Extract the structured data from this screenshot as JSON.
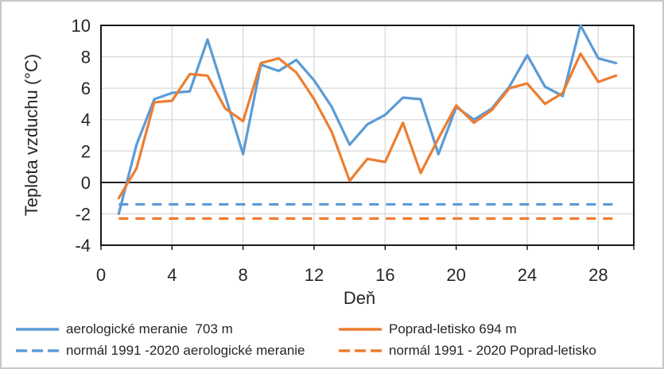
{
  "chart_data": {
    "type": "line",
    "xlabel": "Deň",
    "ylabel": "Teplota vzduchu (°C)",
    "xlim": [
      0,
      30
    ],
    "ylim": [
      -4,
      10
    ],
    "xticks": [
      0,
      4,
      8,
      12,
      16,
      20,
      24,
      28
    ],
    "yticks": [
      -4,
      -2,
      0,
      2,
      4,
      6,
      8,
      10
    ],
    "grid": true,
    "legend_position": "bottom",
    "x": [
      1,
      2,
      3,
      4,
      5,
      6,
      7,
      8,
      9,
      10,
      11,
      12,
      13,
      14,
      15,
      16,
      17,
      18,
      19,
      20,
      21,
      22,
      23,
      24,
      25,
      26,
      27,
      28,
      29
    ],
    "series": [
      {
        "name": "aerologické meranie  703 m",
        "color": "#5B9BD5",
        "dashed": false,
        "values": [
          -2.0,
          2.4,
          5.3,
          5.7,
          5.8,
          9.1,
          5.5,
          1.8,
          7.5,
          7.1,
          7.8,
          6.5,
          4.8,
          2.4,
          3.7,
          4.3,
          5.4,
          5.3,
          1.8,
          4.8,
          4.0,
          4.7,
          6.1,
          8.1,
          6.1,
          5.5,
          10.0,
          7.9,
          7.6
        ]
      },
      {
        "name": "Poprad-letisko 694 m",
        "color": "#ED7D31",
        "dashed": false,
        "values": [
          -1.0,
          0.9,
          5.1,
          5.2,
          6.9,
          6.8,
          4.7,
          3.9,
          7.6,
          7.9,
          7.0,
          5.3,
          3.2,
          0.1,
          1.5,
          1.3,
          3.8,
          0.6,
          2.8,
          4.9,
          3.8,
          4.6,
          6.0,
          6.3,
          5.0,
          5.7,
          8.2,
          6.4,
          6.8
        ]
      },
      {
        "name": "normál 1991 -2020 aerologické meranie",
        "color": "#5B9BD5",
        "dashed": true,
        "constant": -1.4
      },
      {
        "name": "normál 1991 - 2020 Poprad-letisko",
        "color": "#ED7D31",
        "dashed": true,
        "constant": -2.3
      }
    ]
  },
  "legend": {
    "columns": [
      [
        0,
        2
      ],
      [
        1,
        3
      ]
    ]
  },
  "colors": {
    "grid": "#D9D9D9",
    "axis": "#000000",
    "text": "#262626",
    "frame": "#C8C8C8",
    "background": "#FFFFFF"
  }
}
